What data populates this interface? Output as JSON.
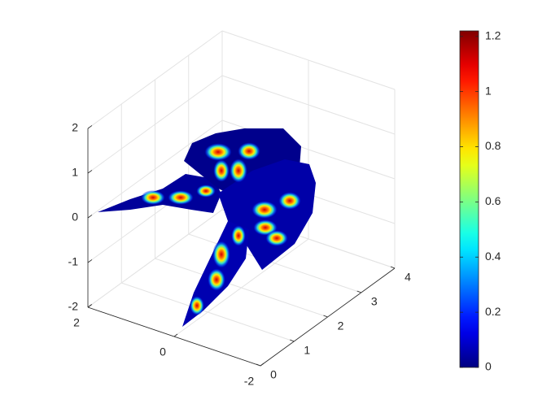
{
  "chart_data": {
    "type": "surface",
    "xlim": [
      -2,
      2
    ],
    "ylim": [
      0,
      4
    ],
    "zlim": [
      -2,
      2
    ],
    "xticks": [
      -2,
      0,
      2
    ],
    "yticks": [
      0,
      1,
      2,
      3,
      4
    ],
    "zticks": [
      -2,
      -1,
      0,
      1,
      2
    ],
    "grid": true,
    "colorbar": {
      "colormap": "jet",
      "clim": [
        0,
        1.22
      ],
      "ticks": [
        0,
        0.2,
        0.4,
        0.6,
        0.8,
        1,
        1.2
      ]
    }
  }
}
